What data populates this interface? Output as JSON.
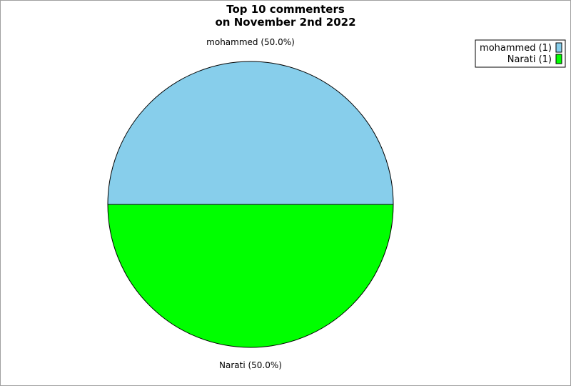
{
  "chart_data": {
    "type": "pie",
    "title_lines": [
      "Top 10 commenters",
      "on November 2nd 2022"
    ],
    "slices": [
      {
        "label": "mohammed",
        "value": 1,
        "percent": 50.0,
        "slice_label": "mohammed (50.0%)",
        "legend_label": "mohammed (1)",
        "color": "#87CEEB"
      },
      {
        "label": "Narati",
        "value": 1,
        "percent": 50.0,
        "slice_label": "Narati (50.0%)",
        "legend_label": "Narati (1)",
        "color": "#00FF00"
      }
    ],
    "legend_position": "top-right"
  }
}
